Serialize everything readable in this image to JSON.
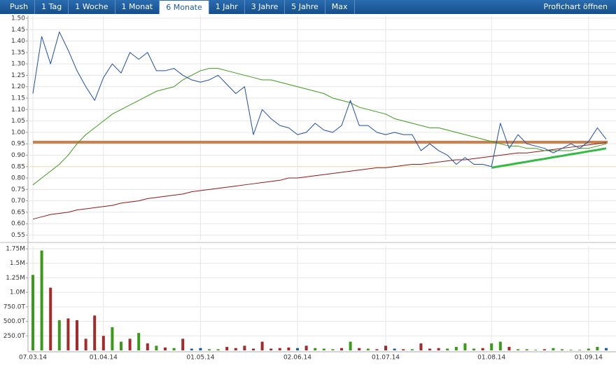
{
  "toolbar": {
    "tabs": [
      "Push",
      "1 Tag",
      "1 Woche",
      "1 Monat",
      "6 Monate",
      "1 Jahr",
      "3 Jahre",
      "5 Jahre",
      "Max"
    ],
    "active": 4,
    "link": "Profichart öffnen"
  },
  "chart_data": [
    {
      "type": "line",
      "categories": [
        "07.03.14",
        null,
        null,
        null,
        null,
        null,
        null,
        null,
        "01.04.14",
        null,
        null,
        null,
        null,
        null,
        null,
        null,
        null,
        null,
        null,
        "01.05.14",
        null,
        null,
        null,
        null,
        null,
        null,
        null,
        null,
        null,
        null,
        "02.06.14",
        null,
        null,
        null,
        null,
        null,
        null,
        null,
        null,
        null,
        "01.07.14",
        null,
        null,
        null,
        null,
        null,
        null,
        null,
        null,
        null,
        null,
        null,
        "01.08.14",
        null,
        null,
        null,
        null,
        null,
        null,
        null,
        null,
        null,
        null,
        "01.09.14",
        null,
        null
      ],
      "ylim": [
        0.53,
        1.5
      ],
      "yticks": [
        {
          "value": 1.5,
          "label": "1.50"
        },
        1.45,
        {
          "value": 1.4,
          "label": "1.40"
        },
        1.35,
        {
          "value": 1.3,
          "label": "1.30"
        },
        1.25,
        {
          "value": 1.2,
          "label": "1.20"
        },
        1.15,
        {
          "value": 1.1,
          "label": "1.10"
        },
        1.05,
        {
          "value": 1.0,
          "label": "1.00"
        },
        0.95,
        {
          "value": 0.9,
          "label": "0.90"
        },
        0.85,
        {
          "value": 0.8,
          "label": "0.80"
        },
        0.75,
        {
          "value": 0.7,
          "label": "0.70"
        },
        0.65,
        {
          "value": 0.6,
          "label": "0.60"
        },
        0.55
      ],
      "grid": true,
      "hlines": [
        {
          "value": 0.957,
          "color": "#c8814e"
        },
        {
          "value": 0.85,
          "color": "#efe3a8"
        }
      ],
      "series": [
        {
          "color": "#8b1a1a",
          "values": [
            0.62,
            0.63,
            0.64,
            0.645,
            0.65,
            0.66,
            0.665,
            0.67,
            0.675,
            0.68,
            0.69,
            0.695,
            0.7,
            0.71,
            0.715,
            0.72,
            0.725,
            0.73,
            0.74,
            0.745,
            0.75,
            0.755,
            0.76,
            0.765,
            0.77,
            0.775,
            0.78,
            0.785,
            0.79,
            0.8,
            0.8,
            0.805,
            0.81,
            0.815,
            0.82,
            0.825,
            0.83,
            0.835,
            0.84,
            0.845,
            0.845,
            0.85,
            0.855,
            0.86,
            0.86,
            0.865,
            0.87,
            0.875,
            0.88,
            0.88,
            0.885,
            0.89,
            0.895,
            0.9,
            0.905,
            0.91,
            0.91,
            0.915,
            0.92,
            0.925,
            0.93,
            0.935,
            0.94,
            0.945,
            0.95,
            0.955
          ]
        },
        {
          "color": "#3b9b1b",
          "values": [
            0.77,
            0.8,
            0.83,
            0.86,
            0.9,
            0.95,
            0.99,
            1.02,
            1.05,
            1.08,
            1.1,
            1.12,
            1.14,
            1.16,
            1.18,
            1.19,
            1.2,
            1.23,
            1.25,
            1.27,
            1.28,
            1.28,
            1.27,
            1.26,
            1.25,
            1.24,
            1.23,
            1.23,
            1.22,
            1.21,
            1.2,
            1.19,
            1.18,
            1.17,
            1.15,
            1.14,
            1.13,
            1.11,
            1.1,
            1.09,
            1.08,
            1.06,
            1.05,
            1.04,
            1.03,
            1.02,
            1.02,
            1.01,
            1.0,
            0.99,
            0.98,
            0.97,
            0.96,
            0.95,
            0.94,
            0.94,
            0.93,
            0.93,
            0.92,
            0.92,
            0.92,
            0.92,
            0.93,
            0.93,
            0.94,
            0.95
          ]
        },
        {
          "color": "#1f4f9f",
          "values": [
            1.17,
            1.42,
            1.3,
            1.44,
            1.36,
            1.27,
            1.2,
            1.14,
            1.24,
            1.3,
            1.26,
            1.35,
            1.32,
            1.35,
            1.27,
            1.27,
            1.28,
            1.25,
            1.23,
            1.22,
            1.23,
            1.25,
            1.21,
            1.17,
            1.2,
            0.99,
            1.1,
            1.06,
            1.03,
            1.02,
            0.99,
            1.0,
            1.04,
            1.01,
            1.0,
            1.03,
            1.14,
            1.03,
            1.03,
            1.0,
            0.99,
            1.0,
            0.99,
            0.99,
            0.92,
            0.95,
            0.92,
            0.9,
            0.86,
            0.89,
            0.86,
            0.86,
            0.85,
            1.04,
            0.93,
            0.99,
            0.95,
            0.94,
            0.93,
            0.91,
            0.93,
            0.95,
            0.93,
            0.96,
            1.02,
            0.97
          ]
        },
        {
          "color": "#33bb44",
          "values": [
            null,
            null,
            null,
            null,
            null,
            null,
            null,
            null,
            null,
            null,
            null,
            null,
            null,
            null,
            null,
            null,
            null,
            null,
            null,
            null,
            null,
            null,
            null,
            null,
            null,
            null,
            null,
            null,
            null,
            null,
            null,
            null,
            null,
            null,
            null,
            null,
            null,
            null,
            null,
            null,
            null,
            null,
            null,
            null,
            null,
            null,
            null,
            null,
            null,
            null,
            null,
            null,
            0.845,
            0.852,
            0.858,
            0.865,
            0.871,
            0.878,
            0.884,
            0.891,
            0.897,
            0.904,
            0.91,
            0.917,
            0.923,
            0.93
          ]
        }
      ]
    },
    {
      "type": "bar",
      "categories": [
        "07.03.14",
        null,
        null,
        null,
        null,
        null,
        null,
        null,
        "01.04.14",
        null,
        null,
        null,
        null,
        null,
        null,
        null,
        null,
        null,
        null,
        "01.05.14",
        null,
        null,
        null,
        null,
        null,
        null,
        null,
        null,
        null,
        null,
        "02.06.14",
        null,
        null,
        null,
        null,
        null,
        null,
        null,
        null,
        null,
        "01.07.14",
        null,
        null,
        null,
        null,
        null,
        null,
        null,
        null,
        null,
        null,
        null,
        "01.08.14",
        null,
        null,
        null,
        null,
        null,
        null,
        null,
        null,
        null,
        null,
        "01.09.14",
        null,
        null
      ],
      "ylim": [
        0,
        1750000
      ],
      "yticks": [
        {
          "value": 1750000,
          "label": "1.75M"
        },
        {
          "value": 1500000,
          "label": "1.5M"
        },
        {
          "value": 1250000,
          "label": "1.25M"
        },
        {
          "value": 1000000,
          "label": "1.0M"
        },
        {
          "value": 750000,
          "label": "750.0T"
        },
        {
          "value": 500000,
          "label": "500.0T"
        },
        {
          "value": 250000,
          "label": "250.0T"
        }
      ],
      "grid": true,
      "values": [
        1300000,
        1720000,
        1080000,
        520000,
        550000,
        520000,
        200000,
        600000,
        250000,
        400000,
        150000,
        200000,
        300000,
        120000,
        80000,
        50000,
        40000,
        200000,
        30000,
        40000,
        20000,
        20000,
        60000,
        40000,
        80000,
        30000,
        150000,
        30000,
        40000,
        50000,
        40000,
        80000,
        40000,
        30000,
        20000,
        40000,
        150000,
        40000,
        30000,
        20000,
        80000,
        30000,
        20000,
        20000,
        120000,
        30000,
        40000,
        30000,
        60000,
        120000,
        30000,
        40000,
        120000,
        150000,
        60000,
        20000,
        20000,
        10000,
        20000,
        40000,
        20000,
        10000,
        10000,
        30000,
        60000,
        40000
      ],
      "bar_colors": [
        "#3a9a1a",
        "#3a9a1a",
        "#a52a2a",
        "#3a9a1a",
        "#a52a2a",
        "#a52a2a",
        "#a52a2a",
        "#a52a2a",
        "#a52a2a",
        "#3a9a1a",
        "#3a9a1a",
        "#a52a2a",
        "#3a9a1a",
        "#a52a2a",
        "#3a9a1a",
        "#a52a2a",
        "#3a9a1a",
        "#a52a2a",
        "#1f5fa8",
        "#1f5fa8",
        "#3a9a1a",
        "#3a9a1a",
        "#a52a2a",
        "#a52a2a",
        "#a52a2a",
        "#a52a2a",
        "#a52a2a",
        "#a52a2a",
        "#a52a2a",
        "#a52a2a",
        "#1f5fa8",
        "#a52a2a",
        "#3a9a1a",
        "#3a9a1a",
        "#3a9a1a",
        "#a52a2a",
        "#3a9a1a",
        "#a52a2a",
        "#3a9a1a",
        "#a52a2a",
        "#a52a2a",
        "#1f5fa8",
        "#a52a2a",
        "#3a9a1a",
        "#a52a2a",
        "#a52a2a",
        "#a52a2a",
        "#3a9a1a",
        "#3a9a1a",
        "#3a9a1a",
        "#3a9a1a",
        "#a52a2a",
        "#3a9a1a",
        "#3a9a1a",
        "#a52a2a",
        "#3a9a1a",
        "#3a9a1a",
        "#3a9a1a",
        "#a52a2a",
        "#3a9a1a",
        "#3a9a1a",
        "#3a9a1a",
        "#3a9a1a",
        "#3a9a1a",
        "#3a9a1a",
        "#1f5fa8"
      ]
    }
  ]
}
